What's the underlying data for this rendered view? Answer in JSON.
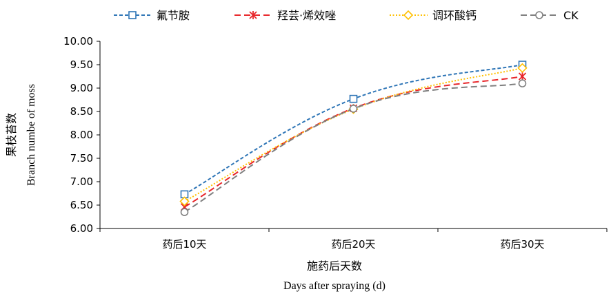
{
  "chart_data": {
    "type": "line",
    "categories": [
      "药后10天",
      "药后20天",
      "药后30天"
    ],
    "series": [
      {
        "name": "氟节胺",
        "values": [
          6.73,
          8.77,
          9.5
        ],
        "color": "#2E75B6",
        "marker": "square",
        "dash": "dash"
      },
      {
        "name": "羟芸·烯效唑",
        "values": [
          6.46,
          8.57,
          9.25
        ],
        "color": "#E8262A",
        "marker": "star",
        "dash": "longdash"
      },
      {
        "name": "调环酸钙",
        "values": [
          6.58,
          8.55,
          9.43
        ],
        "color": "#FFC000",
        "marker": "diamond",
        "dash": "dot"
      },
      {
        "name": "CK",
        "values": [
          6.35,
          8.56,
          9.1
        ],
        "color": "#7F7F7F",
        "marker": "circle",
        "dash": "longdash"
      }
    ],
    "ylim": [
      6.0,
      10.0
    ],
    "yticks": [
      "6.00",
      "6.50",
      "7.00",
      "7.50",
      "8.00",
      "8.50",
      "9.00",
      "9.50",
      "10.00"
    ],
    "ylabel_cn": "果枝苔数",
    "ylabel_en": "Branch numbe of moss",
    "xlabel_cn": "施药后天数",
    "xlabel_en": "Days after spraying (d)",
    "grid": false,
    "legend": "top"
  }
}
